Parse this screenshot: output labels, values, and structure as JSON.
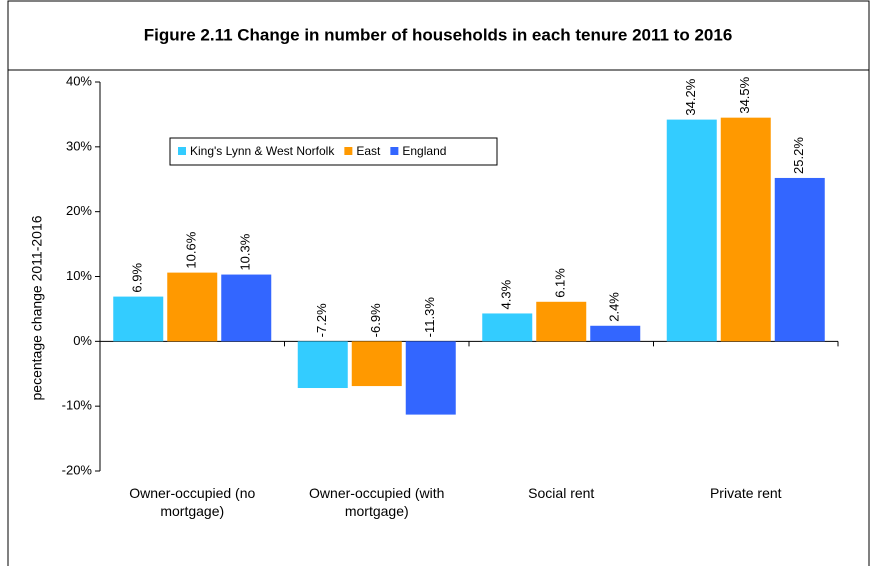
{
  "chart_data": {
    "type": "bar",
    "title": "Figure 2.11 Change in number of households in each tenure 2011 to 2016",
    "y_label": "pecentage change 2011-2016",
    "categories": [
      "Owner-occupied (no mortgage)",
      "Owner-occupied (with mortgage)",
      "Social rent",
      "Private rent"
    ],
    "series": [
      {
        "name": "King's Lynn & West Norfolk",
        "color": "#33ccff",
        "values": [
          6.9,
          -7.2,
          4.3,
          34.2
        ],
        "value_labels": [
          "6.9%",
          "-7.2%",
          "4.3%",
          "34.2%"
        ]
      },
      {
        "name": "East",
        "color": "#ff9900",
        "values": [
          10.6,
          -6.9,
          6.1,
          34.5
        ],
        "value_labels": [
          "10.6%",
          "-6.9%",
          "6.1%",
          "34.5%"
        ]
      },
      {
        "name": "England",
        "color": "#3366ff",
        "values": [
          10.3,
          -11.3,
          2.4,
          25.2
        ],
        "value_labels": [
          "10.3%",
          "-11.3%",
          "2.4%",
          "25.2%"
        ]
      }
    ],
    "ylim": [
      -20,
      40
    ],
    "yticks": [
      {
        "value": -20,
        "label": "-20%"
      },
      {
        "value": -10,
        "label": "-10%"
      },
      {
        "value": 0,
        "label": "0%"
      },
      {
        "value": 10,
        "label": "10%"
      },
      {
        "value": 20,
        "label": "20%"
      },
      {
        "value": 30,
        "label": "30%"
      },
      {
        "value": 40,
        "label": "40%"
      }
    ],
    "legend": "top-left",
    "grid": false
  }
}
